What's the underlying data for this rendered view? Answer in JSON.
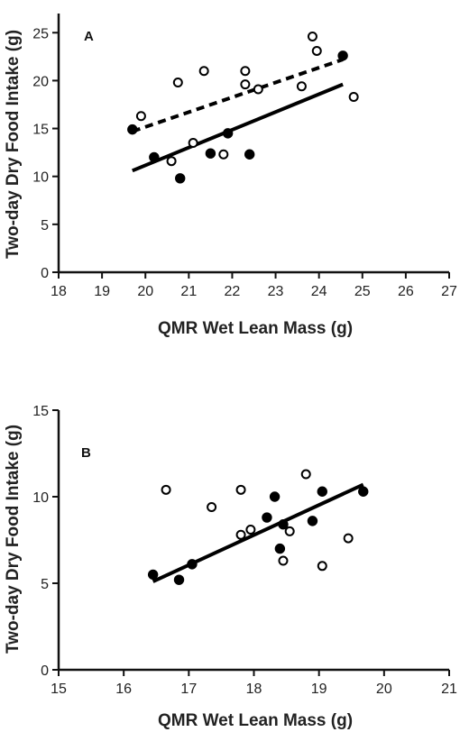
{
  "chart_data": [
    {
      "type": "scatter",
      "panel": "A",
      "xlabel": "QMR Wet Lean Mass (g)",
      "ylabel": "Two-day Dry Food Intake (g)",
      "xlim": [
        18,
        27
      ],
      "ylim": [
        0,
        27
      ],
      "xticks": [
        18,
        19,
        20,
        21,
        22,
        23,
        24,
        25,
        26,
        27
      ],
      "yticks": [
        0,
        5,
        10,
        15,
        20,
        25
      ],
      "grid": false,
      "series": [
        {
          "marker": "filled-circle",
          "points": [
            [
              19.7,
              14.9
            ],
            [
              20.2,
              12.0
            ],
            [
              20.8,
              9.8
            ],
            [
              21.5,
              12.4
            ],
            [
              21.9,
              14.5
            ],
            [
              22.4,
              12.3
            ],
            [
              24.55,
              22.6
            ]
          ],
          "fit": {
            "style": "solid",
            "from": [
              19.7,
              10.6
            ],
            "to": [
              24.55,
              19.6
            ]
          }
        },
        {
          "marker": "open-circle",
          "points": [
            [
              19.9,
              16.3
            ],
            [
              20.6,
              11.6
            ],
            [
              20.75,
              19.8
            ],
            [
              21.1,
              13.5
            ],
            [
              21.35,
              21.0
            ],
            [
              21.8,
              12.3
            ],
            [
              22.3,
              21.0
            ],
            [
              22.3,
              19.6
            ],
            [
              22.6,
              19.1
            ],
            [
              23.6,
              19.4
            ],
            [
              23.85,
              24.6
            ],
            [
              23.95,
              23.1
            ],
            [
              24.8,
              18.3
            ]
          ],
          "fit": {
            "style": "dashed",
            "from": [
              19.7,
              14.7
            ],
            "to": [
              24.55,
              22.2
            ]
          }
        }
      ]
    },
    {
      "type": "scatter",
      "panel": "B",
      "xlabel": "QMR Wet Lean Mass (g)",
      "ylabel": "Two-day Dry Food Intake (g)",
      "xlim": [
        15,
        21
      ],
      "ylim": [
        0,
        15
      ],
      "xticks": [
        15,
        16,
        17,
        18,
        19,
        20,
        21
      ],
      "yticks": [
        0,
        5,
        10,
        15
      ],
      "grid": false,
      "series": [
        {
          "marker": "filled-circle",
          "points": [
            [
              16.45,
              5.5
            ],
            [
              16.85,
              5.2
            ],
            [
              17.05,
              6.1
            ],
            [
              18.2,
              8.8
            ],
            [
              18.32,
              10.0
            ],
            [
              18.4,
              7.0
            ],
            [
              18.45,
              8.4
            ],
            [
              18.9,
              8.6
            ],
            [
              19.05,
              10.3
            ],
            [
              19.68,
              10.3
            ]
          ],
          "fit": {
            "style": "solid",
            "from": [
              16.45,
              5.1
            ],
            "to": [
              19.68,
              10.7
            ]
          }
        },
        {
          "marker": "open-circle",
          "points": [
            [
              16.65,
              10.4
            ],
            [
              17.35,
              9.4
            ],
            [
              17.8,
              10.4
            ],
            [
              17.8,
              7.8
            ],
            [
              17.95,
              8.1
            ],
            [
              18.45,
              6.3
            ],
            [
              18.55,
              8.0
            ],
            [
              18.8,
              11.3
            ],
            [
              19.05,
              6.0
            ],
            [
              19.45,
              7.6
            ]
          ],
          "fit": null
        }
      ]
    }
  ]
}
